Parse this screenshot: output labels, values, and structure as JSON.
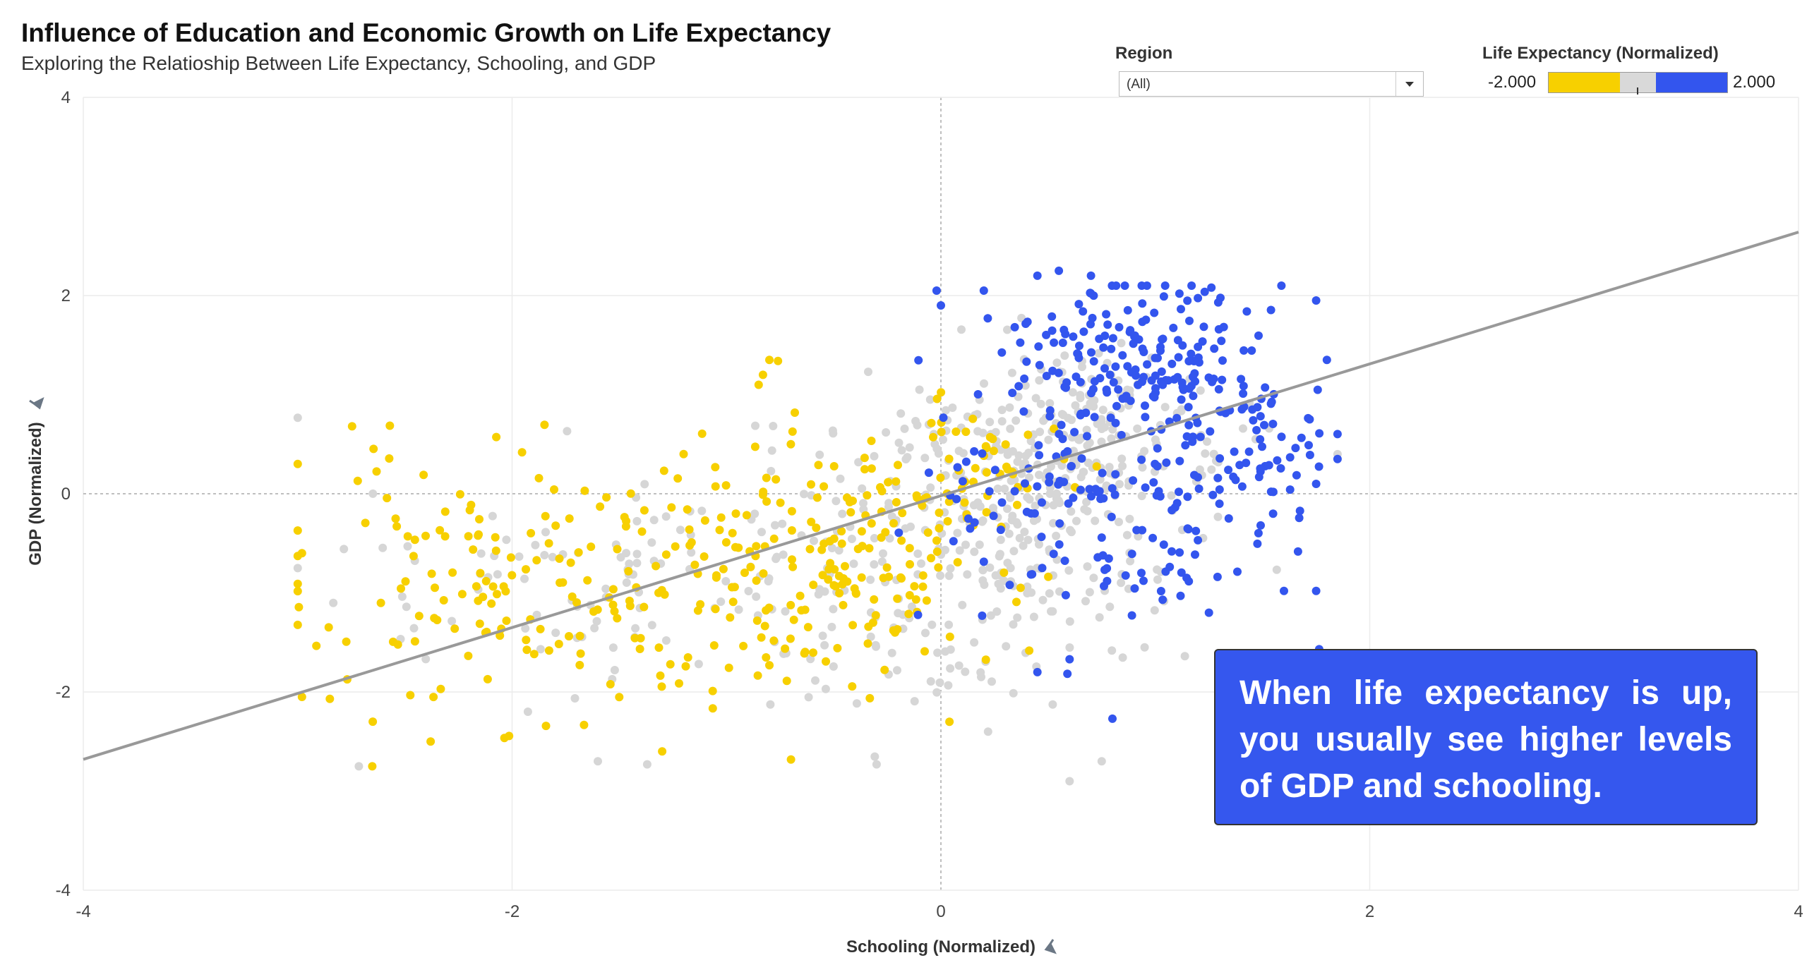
{
  "title": "Influence of Education and Economic Growth on Life Expectancy",
  "subtitle": "Exploring the Relatioship Between Life Expectancy, Schooling, and GDP",
  "filter": {
    "label": "Region",
    "value": "(All)"
  },
  "legend": {
    "title": "Life Expectancy (Normalized)",
    "min_label": "-2.000",
    "max_label": "2.000",
    "colors": [
      "#f7d000",
      "#d9d9d9",
      "#3355ee"
    ]
  },
  "annotation": "When life expectancy is up, you usually see higher levels of GDP and schooling.",
  "colors": {
    "low": "#f7d000",
    "mid": "#d6d6d6",
    "high": "#3355ee",
    "trend": "#999999"
  },
  "chart_data": {
    "type": "scatter",
    "xlabel": "Schooling (Normalized)",
    "ylabel": "GDP (Normalized)",
    "xlim": [
      -4,
      4
    ],
    "ylim": [
      -4,
      4
    ],
    "xticks": [
      -4,
      -2,
      0,
      2,
      4
    ],
    "yticks": [
      -4,
      -2,
      0,
      2,
      4
    ],
    "xtick_labels": [
      "-4",
      "-2",
      "0",
      "2",
      "4"
    ],
    "ytick_labels": [
      "-4",
      "-2",
      "0",
      "2",
      "4"
    ],
    "grid": true,
    "trend_line": {
      "slope": 0.665,
      "intercept": -0.02
    },
    "clusters": [
      {
        "color": "low",
        "cx": -1.6,
        "cy": -0.9,
        "sx": 0.75,
        "sy": 0.7,
        "count": 240,
        "seed": 11
      },
      {
        "color": "low",
        "cx": -0.4,
        "cy": -0.6,
        "sx": 0.35,
        "sy": 0.6,
        "count": 110,
        "seed": 23
      },
      {
        "color": "low",
        "cx": 0.15,
        "cy": 0.3,
        "sx": 0.2,
        "sy": 0.35,
        "count": 45,
        "seed": 31
      },
      {
        "color": "mid",
        "cx": -1.3,
        "cy": -0.9,
        "sx": 0.7,
        "sy": 0.6,
        "count": 120,
        "seed": 41
      },
      {
        "color": "mid",
        "cx": 0.1,
        "cy": -0.5,
        "sx": 0.45,
        "sy": 0.75,
        "count": 260,
        "seed": 53
      },
      {
        "color": "mid",
        "cx": 0.6,
        "cy": 0.5,
        "sx": 0.35,
        "sy": 0.5,
        "count": 220,
        "seed": 67
      },
      {
        "color": "high",
        "cx": 0.95,
        "cy": 1.35,
        "sx": 0.35,
        "sy": 0.45,
        "count": 200,
        "seed": 71
      },
      {
        "color": "high",
        "cx": 0.75,
        "cy": -0.1,
        "sx": 0.45,
        "sy": 0.6,
        "count": 150,
        "seed": 83
      },
      {
        "color": "high",
        "cx": 1.45,
        "cy": 0.4,
        "sx": 0.2,
        "sy": 0.3,
        "count": 40,
        "seed": 97
      }
    ],
    "points": [
      {
        "x": -0.8,
        "y": 1.35,
        "color": "low"
      },
      {
        "x": -0.83,
        "y": 1.2,
        "color": "low"
      },
      {
        "x": -0.85,
        "y": 1.1,
        "color": "low"
      },
      {
        "x": -0.76,
        "y": 1.34,
        "color": "low"
      },
      {
        "x": -2.98,
        "y": -0.6,
        "color": "low"
      },
      {
        "x": -2.98,
        "y": -2.05,
        "color": "low"
      },
      {
        "x": -2.85,
        "y": -2.07,
        "color": "low"
      },
      {
        "x": -2.65,
        "y": -2.3,
        "color": "low"
      },
      {
        "x": -2.38,
        "y": -2.5,
        "color": "low"
      },
      {
        "x": -1.3,
        "y": -2.6,
        "color": "low"
      },
      {
        "x": -0.8,
        "y": -1.73,
        "color": "low"
      },
      {
        "x": -1.2,
        "y": 0.4,
        "color": "low"
      },
      {
        "x": -0.7,
        "y": 0.5,
        "color": "low"
      },
      {
        "x": -0.02,
        "y": 2.05,
        "color": "high"
      },
      {
        "x": 0.2,
        "y": 2.05,
        "color": "high"
      },
      {
        "x": 0.55,
        "y": 2.25,
        "color": "high"
      },
      {
        "x": 0.7,
        "y": 2.2,
        "color": "high"
      },
      {
        "x": 0.45,
        "y": 2.2,
        "color": "high"
      },
      {
        "x": 0.0,
        "y": 1.9,
        "color": "high"
      },
      {
        "x": 1.75,
        "y": 1.95,
        "color": "high"
      },
      {
        "x": 1.8,
        "y": 1.35,
        "color": "high"
      },
      {
        "x": 1.85,
        "y": 0.35,
        "color": "high"
      },
      {
        "x": 1.75,
        "y": 0.1,
        "color": "high"
      },
      {
        "x": 1.6,
        "y": -0.98,
        "color": "high"
      },
      {
        "x": 1.75,
        "y": -0.98,
        "color": "high"
      },
      {
        "x": 1.25,
        "y": -1.2,
        "color": "high"
      },
      {
        "x": 0.8,
        "y": -2.27,
        "color": "high"
      },
      {
        "x": 0.6,
        "y": -1.67,
        "color": "high"
      },
      {
        "x": 0.45,
        "y": -1.8,
        "color": "high"
      },
      {
        "x": 0.6,
        "y": -2.9,
        "color": "mid"
      },
      {
        "x": 0.75,
        "y": -2.7,
        "color": "mid"
      },
      {
        "x": -0.3,
        "y": -2.73,
        "color": "mid"
      },
      {
        "x": -1.6,
        "y": -2.7,
        "color": "mid"
      },
      {
        "x": -1.37,
        "y": -2.73,
        "color": "mid"
      },
      {
        "x": 0.22,
        "y": -2.4,
        "color": "mid"
      },
      {
        "x": 0.95,
        "y": -1.55,
        "color": "mid"
      },
      {
        "x": -0.1,
        "y": 1.05,
        "color": "mid"
      },
      {
        "x": -0.05,
        "y": 0.95,
        "color": "mid"
      }
    ]
  }
}
